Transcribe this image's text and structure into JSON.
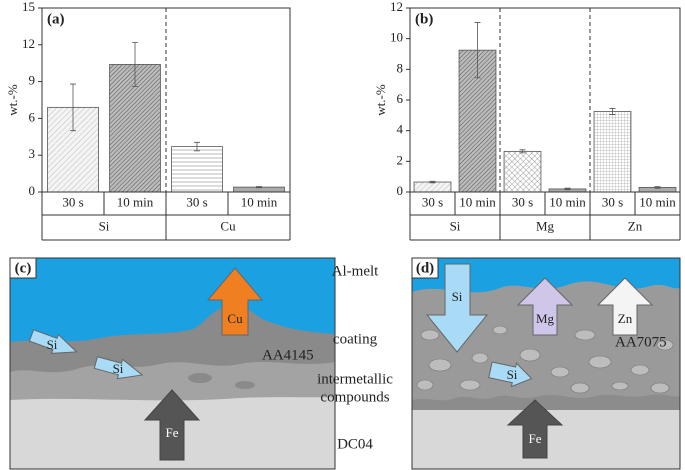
{
  "chart_data": [
    {
      "type": "bar",
      "panel_label": "(a)",
      "y_label": "wt.-%",
      "categories": [
        "30 s",
        "10 min",
        "30 s",
        "10 min"
      ],
      "groups": [
        "Si",
        "Cu"
      ],
      "values": [
        6.9,
        10.4,
        3.7,
        0.4
      ],
      "errors": [
        1.9,
        1.8,
        0.35,
        0.05
      ],
      "ylim": [
        0,
        15
      ],
      "yticks": [
        0,
        3,
        6,
        9,
        12,
        15
      ]
    },
    {
      "type": "bar",
      "panel_label": "(b)",
      "y_label": "wt.-%",
      "categories": [
        "30 s",
        "10 min",
        "30 s",
        "10 min",
        "30 s",
        "10 min"
      ],
      "groups": [
        "Si",
        "Mg",
        "Zn"
      ],
      "values": [
        0.65,
        9.25,
        2.65,
        0.2,
        5.25,
        0.3
      ],
      "errors": [
        0.05,
        1.8,
        0.1,
        0.05,
        0.2,
        0.05
      ],
      "ylim": [
        0,
        12
      ],
      "yticks": [
        0,
        2,
        4,
        6,
        8,
        10,
        12
      ]
    }
  ],
  "diagram": {
    "layer_labels": [
      "Al-melt",
      "coating",
      "intermetallic",
      "compounds",
      "DC04"
    ],
    "panels": [
      {
        "label": "(c)",
        "alloy": "AA4145",
        "arrows": [
          "Cu",
          "Si",
          "Si",
          "Fe"
        ]
      },
      {
        "label": "(d)",
        "alloy": "AA7075",
        "arrows": [
          "Si",
          "Mg",
          "Zn",
          "Si",
          "Fe"
        ]
      }
    ]
  }
}
